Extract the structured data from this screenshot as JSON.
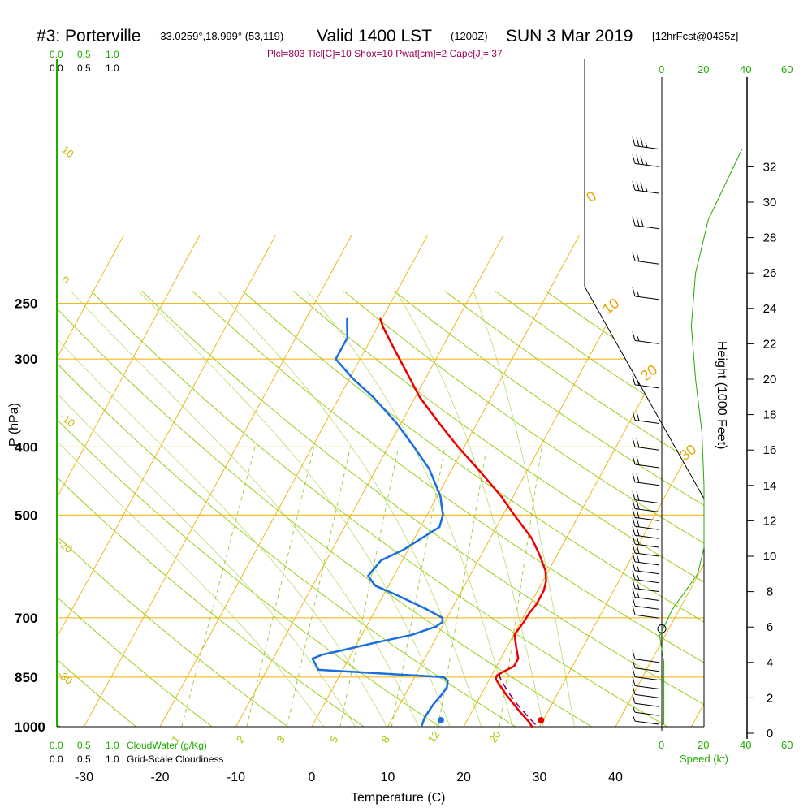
{
  "header": {
    "station": "#3: Porterville",
    "coords": "-33.0259°,18.999° (53,119)",
    "valid": "Valid 1400 LST",
    "utc": "(1200Z)",
    "date": "SUN 3 Mar 2019",
    "forecast": "[12hrFcst@0435z]"
  },
  "indices": "Plcl=803 Tlcl[C]=10 Shox=10 Pwat[cm]=2 Cape[J]= 37",
  "cloud_scales": {
    "green_top": [
      "0.0",
      "0.5",
      "1.0"
    ],
    "black_top": [
      "0.0",
      "0.5",
      "1.0"
    ],
    "green_bottom": [
      "0.0",
      "0.5",
      "1.0"
    ],
    "black_bottom": [
      "0.0",
      "0.5",
      "1.0"
    ],
    "cloudwater_label": "CloudWater (g/Kg)",
    "cloudiness_label": "Grid-Scale Cloudiness"
  },
  "speed_axis": {
    "top_ticks": [
      "0",
      "20",
      "40",
      "60"
    ],
    "bottom_ticks": [
      "0",
      "20",
      "40",
      "60"
    ],
    "label": "Speed (kt)"
  },
  "colors": {
    "temperature": "#ee0000",
    "dewpoint": "#1a6fe0",
    "isotherm": "#f0b000",
    "dry_adiabat": "#8ccc00",
    "mixing_ratio": "#99cc33",
    "parcel": "#7a0066",
    "speed": "#22aa00"
  },
  "chart_data": {
    "type": "line",
    "title": "#3: Porterville Valid 1400 LST (1200Z) SUN 3 Mar 2019",
    "xlabel": "Temperature (C)",
    "ylabel": "P (hPa)",
    "y2label": "Height (1000 Feet)",
    "xlim": [
      -35,
      45
    ],
    "pressure_ticks": [
      250,
      300,
      400,
      500,
      700,
      850,
      1000
    ],
    "temperature_ticks": [
      -30,
      -20,
      -10,
      0,
      10,
      20,
      30,
      40
    ],
    "height_ticks": [
      0,
      2,
      4,
      6,
      8,
      10,
      12,
      14,
      16,
      18,
      20,
      22,
      24,
      26,
      28,
      30,
      32
    ],
    "isotherm_labels": [
      "10",
      "0",
      "-10",
      "-20",
      "-30",
      "0",
      "10",
      "20",
      "30"
    ],
    "mixing_ratio_labels": [
      "1",
      "2",
      "3",
      "5",
      "8",
      "12",
      "20"
    ],
    "series": [
      {
        "name": "Temperature",
        "pressure": [
          1000,
          985,
          950,
          900,
          870,
          855,
          845,
          835,
          820,
          800,
          770,
          740,
          710,
          690,
          670,
          640,
          620,
          600,
          570,
          540,
          500,
          470,
          430,
          400,
          370,
          340,
          320,
          300,
          285,
          270,
          263
        ],
        "values": [
          29.0,
          28.3,
          26.2,
          23.3,
          21.6,
          20.8,
          20.7,
          21.3,
          22.3,
          22.3,
          21.2,
          20.1,
          20.4,
          20.5,
          20.8,
          20.8,
          20.4,
          19.6,
          17.7,
          15.5,
          11.5,
          8.4,
          3.4,
          -0.8,
          -5.0,
          -9.4,
          -12.0,
          -14.8,
          -17.0,
          -19.3,
          -20.2
        ]
      },
      {
        "name": "Dewpoint",
        "pressure": [
          995,
          970,
          930,
          900,
          880,
          860,
          850,
          830,
          800,
          790,
          780,
          760,
          740,
          720,
          710,
          700,
          680,
          650,
          630,
          610,
          580,
          560,
          520,
          500,
          470,
          430,
          400,
          370,
          340,
          320,
          300,
          280,
          263
        ],
        "values": [
          14.4,
          14.2,
          14.4,
          14.8,
          15.0,
          14.6,
          13.8,
          -3.2,
          -4.8,
          -3.8,
          -1.8,
          2.2,
          6.6,
          9.2,
          9.7,
          9.4,
          6.6,
          1.8,
          -1.8,
          -3.4,
          -2.8,
          -0.6,
          2.5,
          2.1,
          0.4,
          -3.0,
          -6.6,
          -10.6,
          -15.5,
          -19.5,
          -23.2,
          -23.2,
          -24.6
        ]
      }
    ],
    "parcel": {
      "pressure": [
        993,
        960,
        930,
        900,
        870,
        850,
        840
      ],
      "values": [
        29.3,
        27.3,
        25.5,
        23.8,
        22.2,
        21.2,
        20.9
      ]
    },
    "surface_markers": {
      "temperature": 30.2,
      "dewpoint": 17.0
    },
    "wind_speed_profile_kt": {
      "height_kft": [
        0.5,
        2,
        4,
        5.5,
        7,
        9,
        10.5,
        12,
        14,
        17,
        20,
        23,
        26,
        29,
        31,
        33
      ],
      "speed": [
        1,
        1,
        1,
        -1,
        5,
        17,
        20,
        20,
        20,
        19,
        16,
        14,
        16,
        22,
        30,
        38
      ]
    },
    "wind_barbs_kt": {
      "height_kft": [
        0.5,
        1,
        1.5,
        2,
        2.5,
        3,
        3.5,
        4,
        6.5,
        7,
        7.5,
        8,
        8.5,
        9,
        9.5,
        10,
        10.5,
        11,
        11.5,
        12,
        12.5,
        13,
        14,
        15,
        16,
        17.5,
        19.5,
        22,
        24.5,
        26.5,
        28.5,
        30.5,
        32,
        33
      ],
      "speed": [
        5,
        5,
        10,
        10,
        10,
        10,
        10,
        10,
        10,
        10,
        15,
        15,
        15,
        15,
        20,
        20,
        20,
        20,
        20,
        20,
        20,
        20,
        20,
        20,
        20,
        20,
        15,
        15,
        15,
        20,
        30,
        35,
        35,
        35
      ]
    }
  }
}
